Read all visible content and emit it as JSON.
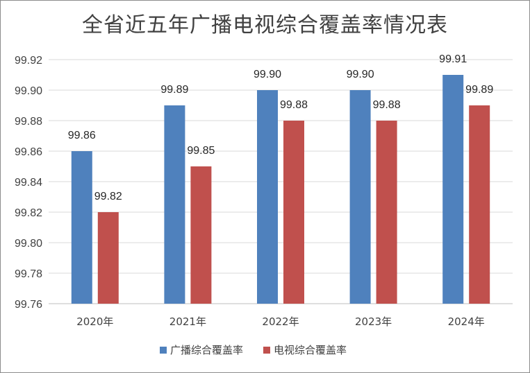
{
  "chart_data": {
    "type": "bar",
    "title": "全省近五年广播电视综合覆盖率情况表",
    "categories": [
      "2020年",
      "2021年",
      "2022年",
      "2023年",
      "2024年"
    ],
    "series": [
      {
        "name": "广播综合覆盖率",
        "color": "#4f81bd",
        "values": [
          99.86,
          99.89,
          99.9,
          99.9,
          99.91
        ]
      },
      {
        "name": "电视综合覆盖率",
        "color": "#c0504d",
        "values": [
          99.82,
          99.85,
          99.88,
          99.88,
          99.89
        ]
      }
    ],
    "ylim": [
      99.76,
      99.92
    ],
    "yticks": [
      "99.76",
      "99.78",
      "99.80",
      "99.82",
      "99.84",
      "99.86",
      "99.88",
      "99.90",
      "99.92"
    ],
    "grid": true,
    "legend_position": "bottom"
  }
}
